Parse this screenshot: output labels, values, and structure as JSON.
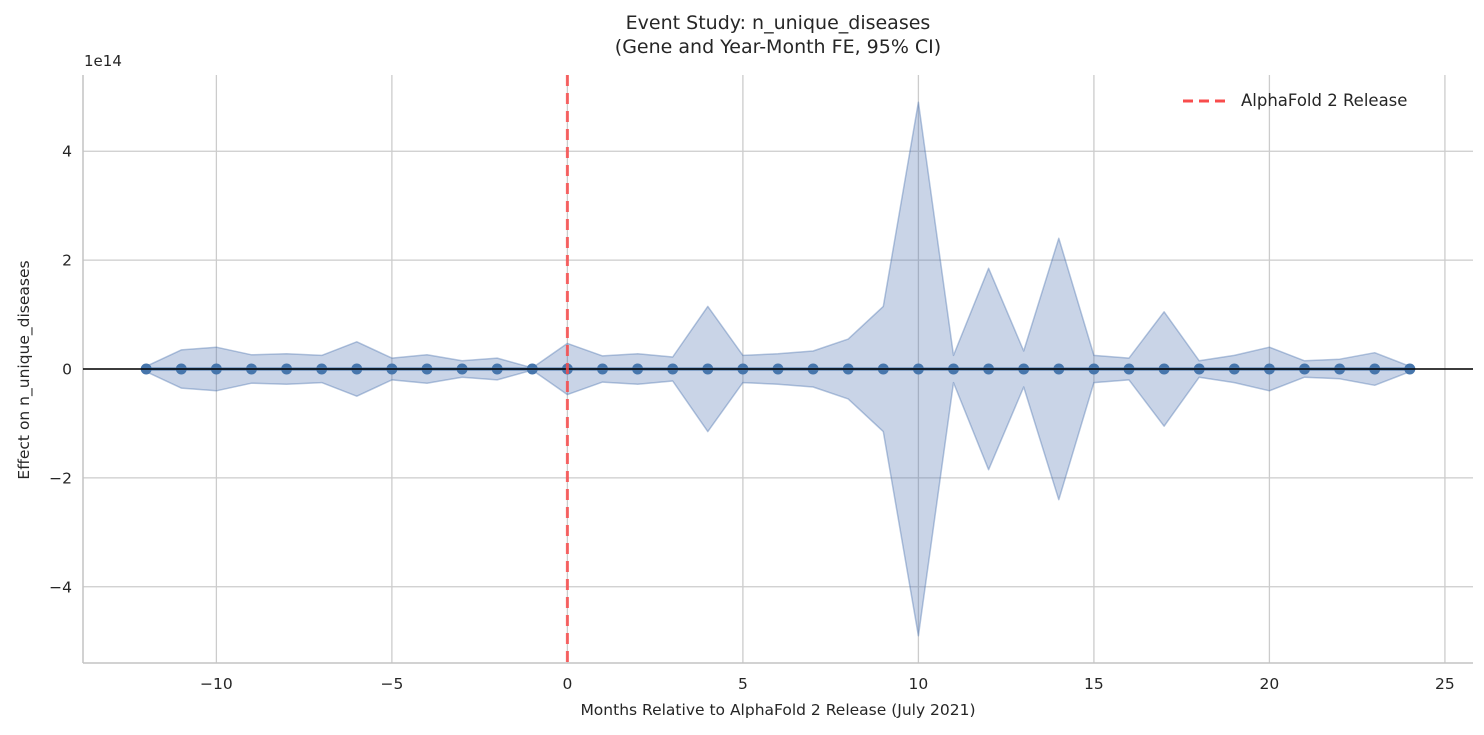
{
  "figure": {
    "title_line1": "Event Study: n_unique_diseases",
    "title_line2": "(Gene and Year-Month FE, 95% CI)",
    "offset_text": "1e14",
    "xlabel": "Months Relative to AlphaFold 2 Release (July 2021)",
    "ylabel": "Effect on n_unique_diseases",
    "legend_label": "AlphaFold 2 Release"
  },
  "chart_data": {
    "type": "line",
    "title": "Event Study: n_unique_diseases (Gene and Year-Month FE, 95% CI)",
    "xlabel": "Months Relative to AlphaFold 2 Release (July 2021)",
    "ylabel": "Effect on n_unique_diseases",
    "units_note": "y values expressed in units of 1e14",
    "x": [
      -12,
      -11,
      -10,
      -9,
      -8,
      -7,
      -6,
      -5,
      -4,
      -3,
      -2,
      -1,
      0,
      1,
      2,
      3,
      4,
      5,
      6,
      7,
      8,
      9,
      10,
      11,
      12,
      13,
      14,
      15,
      16,
      17,
      18,
      19,
      20,
      21,
      22,
      23,
      24
    ],
    "coefficients_1e14": [
      0,
      0,
      0,
      0,
      0,
      0,
      0,
      0,
      0,
      0,
      0,
      0,
      0,
      0,
      0,
      0,
      0,
      0,
      0,
      0,
      0,
      0,
      0,
      0,
      0,
      0,
      0,
      0,
      0,
      0,
      0,
      0,
      0,
      0,
      0,
      0,
      0
    ],
    "ci_halfwidth_1e14": [
      0.05,
      0.35,
      0.4,
      0.26,
      0.28,
      0.25,
      0.5,
      0.2,
      0.26,
      0.15,
      0.2,
      0.02,
      0.47,
      0.24,
      0.28,
      0.22,
      1.15,
      0.25,
      0.28,
      0.33,
      0.55,
      1.15,
      4.9,
      0.25,
      1.85,
      0.33,
      2.4,
      0.25,
      0.2,
      1.05,
      0.15,
      0.25,
      0.4,
      0.15,
      0.18,
      0.3,
      0.05
    ],
    "ci_level": "95%",
    "event_line_x": 0,
    "xlim": [
      -13.8,
      25.8
    ],
    "ylim_1e14": [
      -5.4,
      5.4
    ],
    "xticks": [
      -10,
      -5,
      0,
      5,
      10,
      15,
      20,
      25
    ],
    "xtick_labels": [
      "−10",
      "−5",
      "0",
      "5",
      "10",
      "15",
      "20",
      "25"
    ],
    "yticks_1e14": [
      -4,
      -2,
      0,
      2,
      4
    ],
    "ytick_labels": [
      "−4",
      "−2",
      "0",
      "2",
      "4"
    ],
    "grid": true,
    "legend_entries": [
      "AlphaFold 2 Release"
    ],
    "legend_position": "upper right",
    "colors": {
      "band_fill": "rgba(76,114,176,0.30)",
      "band_edge": "rgba(76,114,176,0.40)",
      "line": "#4776ac",
      "marker": "#4776ac",
      "zero_line": "#000000",
      "event_line": "#f84c4c",
      "grid": "#cccccc",
      "spine": "#c3c3c3",
      "text": "#262626"
    }
  }
}
